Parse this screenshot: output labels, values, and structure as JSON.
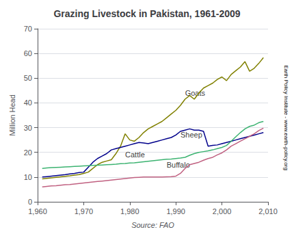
{
  "chart_data": {
    "type": "line",
    "title": "Grazing Livestock in Pakistan, 1961-2009",
    "xlabel": "Source: FAO",
    "ylabel": "Million Head",
    "note": "Earth Policy Institute - www.earth-policy.org",
    "xlim": [
      1960,
      2010
    ],
    "ylim": [
      0,
      70
    ],
    "xticks": [
      1960,
      1970,
      1980,
      1990,
      2000,
      2010
    ],
    "yticks": [
      0,
      10,
      20,
      30,
      40,
      50,
      60,
      70
    ],
    "grid": true,
    "x": [
      1961,
      1962,
      1963,
      1964,
      1965,
      1966,
      1967,
      1968,
      1969,
      1970,
      1971,
      1972,
      1973,
      1974,
      1975,
      1976,
      1977,
      1978,
      1979,
      1980,
      1981,
      1982,
      1983,
      1984,
      1985,
      1986,
      1987,
      1988,
      1989,
      1990,
      1991,
      1992,
      1993,
      1994,
      1995,
      1996,
      1997,
      1998,
      1999,
      2000,
      2001,
      2002,
      2003,
      2004,
      2005,
      2006,
      2007,
      2008,
      2009
    ],
    "series": [
      {
        "name": "Goats",
        "color": "#808000",
        "values": [
          9.3,
          9.5,
          9.7,
          9.9,
          10.1,
          10.3,
          10.5,
          10.8,
          11.0,
          11.5,
          12.0,
          13.5,
          15.0,
          16.0,
          16.5,
          17.0,
          19.5,
          22.5,
          27.5,
          25.0,
          24.5,
          26.0,
          28.0,
          29.5,
          30.5,
          31.5,
          32.5,
          34.0,
          35.5,
          37.0,
          39.0,
          41.5,
          43.0,
          41.5,
          44.0,
          46.0,
          47.0,
          48.0,
          49.5,
          50.5,
          49.0,
          51.5,
          53.0,
          54.5,
          56.7,
          52.8,
          54.0,
          56.0,
          58.3
        ]
      },
      {
        "name": "Sheep",
        "color": "#00008B",
        "values": [
          10.0,
          10.2,
          10.4,
          10.6,
          10.8,
          11.0,
          11.3,
          11.5,
          11.8,
          12.0,
          14.0,
          16.0,
          17.5,
          18.5,
          19.5,
          21.0,
          21.5,
          22.0,
          22.5,
          23.0,
          23.5,
          24.0,
          23.8,
          23.5,
          24.0,
          24.5,
          25.0,
          25.5,
          26.0,
          27.0,
          28.5,
          29.0,
          29.5,
          29.0,
          29.0,
          28.5,
          22.5,
          22.8,
          23.0,
          23.5,
          24.0,
          24.5,
          25.0,
          25.5,
          26.0,
          26.5,
          27.0,
          27.5,
          28.0
        ]
      },
      {
        "name": "Cattle",
        "color": "#3CB371",
        "values": [
          13.5,
          13.7,
          13.8,
          13.9,
          14.0,
          14.1,
          14.2,
          14.3,
          14.4,
          14.5,
          14.6,
          14.7,
          14.8,
          14.9,
          15.0,
          15.1,
          15.2,
          15.4,
          15.5,
          15.7,
          15.8,
          16.0,
          16.2,
          16.4,
          16.6,
          16.8,
          17.0,
          17.2,
          17.3,
          17.5,
          17.7,
          18.0,
          18.8,
          19.5,
          20.0,
          20.3,
          20.6,
          21.0,
          21.5,
          22.0,
          22.8,
          24.5,
          26.3,
          28.0,
          29.5,
          30.5,
          31.0,
          32.0,
          32.5
        ]
      },
      {
        "name": "Buffalo",
        "color": "#C06080",
        "values": [
          6.0,
          6.2,
          6.4,
          6.5,
          6.7,
          6.9,
          7.0,
          7.2,
          7.4,
          7.6,
          7.8,
          8.0,
          8.2,
          8.4,
          8.6,
          8.8,
          9.0,
          9.2,
          9.4,
          9.6,
          9.8,
          9.9,
          10.0,
          10.0,
          10.0,
          10.0,
          10.0,
          10.1,
          10.2,
          10.4,
          11.5,
          13.5,
          15.0,
          15.5,
          16.0,
          16.8,
          17.5,
          18.0,
          19.0,
          19.8,
          21.0,
          22.5,
          23.5,
          24.5,
          25.5,
          26.5,
          27.5,
          28.8,
          29.8
        ]
      }
    ],
    "annotations": [
      {
        "text": "Goats",
        "x": 1992,
        "y": 44
      },
      {
        "text": "Sheep",
        "x": 1991,
        "y": 27
      },
      {
        "text": "Cattle",
        "x": 1979,
        "y": 19
      },
      {
        "text": "Buffalo",
        "x": 1988,
        "y": 15
      }
    ]
  }
}
